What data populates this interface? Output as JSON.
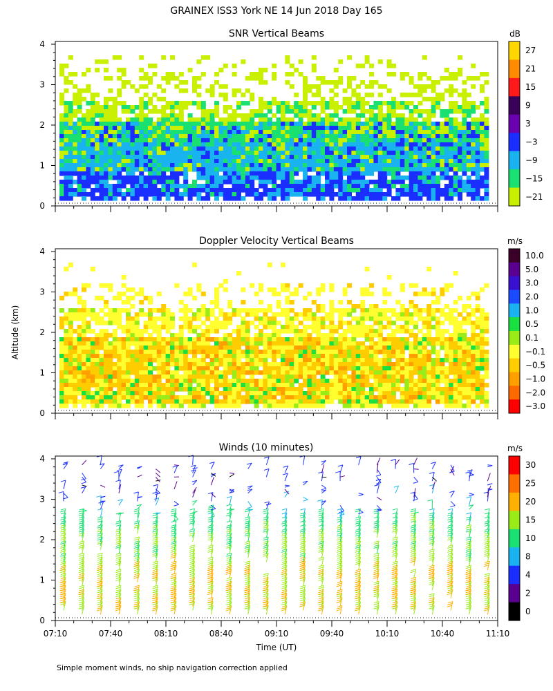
{
  "figure": {
    "title": "GRAINEX ISS3 York NE  14 Jun 2018 Day 165",
    "ylabel": "Altitude (km)",
    "xlabel": "Time (UT)",
    "footnote": "Simple moment winds, no ship navigation correction applied"
  },
  "chart_data": [
    {
      "type": "heatmap",
      "title": "SNR Vertical Beams",
      "colorbar_unit": "dB",
      "ylim": [
        0,
        4
      ],
      "yticks": [
        0,
        1,
        2,
        3,
        4
      ],
      "x_range": [
        "07:10",
        "11:10"
      ],
      "colorbar_levels": [
        "27",
        "21",
        "15",
        "9",
        "3",
        "−3",
        "−9",
        "−15",
        "−21"
      ],
      "colors": [
        "#ffd700",
        "#ff8c00",
        "#ff1a1a",
        "#3a005a",
        "#6a00b0",
        "#1a2fff",
        "#19b4f0",
        "#19e070",
        "#c8f000"
      ],
      "description_layers": [
        {
          "alt_range": [
            0.1,
            0.9
          ],
          "dominant": "-3 to 3 dB"
        },
        {
          "alt_range": [
            0.9,
            1.6
          ],
          "dominant": "-9 dB"
        },
        {
          "alt_range": [
            1.6,
            2.6
          ],
          "dominant": "-15 dB"
        },
        {
          "alt_range": [
            2.6,
            3.8
          ],
          "dominant": "-21 dB (sparse)"
        }
      ]
    },
    {
      "type": "heatmap",
      "title": "Doppler Velocity Vertical Beams",
      "colorbar_unit": "m/s",
      "ylim": [
        0,
        4
      ],
      "yticks": [
        0,
        1,
        2,
        3,
        4
      ],
      "x_range": [
        "07:10",
        "11:10"
      ],
      "colorbar_levels": [
        "10.0",
        "5.0",
        "3.0",
        "2.0",
        "1.0",
        "0.5",
        "0.1",
        "−0.1",
        "−0.5",
        "−1.0",
        "−2.0",
        "−3.0"
      ],
      "colors": [
        "#3a0028",
        "#5a0090",
        "#3a10d0",
        "#1a4cff",
        "#19b4f0",
        "#19e040",
        "#9aec18",
        "#ffff30",
        "#ffcc00",
        "#ffa000",
        "#ff6a00",
        "#ff0000"
      ],
      "description_layers": [
        {
          "alt_range": [
            0.2,
            2.5
          ],
          "dominant": "-0.5 to 0.1 m/s"
        },
        {
          "alt_range": [
            2.8,
            3.3
          ],
          "dominant": "-0.1 m/s (sparse)"
        }
      ]
    },
    {
      "type": "scatter",
      "title": "Winds (10 minutes)",
      "colorbar_unit": "m/s",
      "ylim": [
        0,
        4
      ],
      "yticks": [
        0,
        1,
        2,
        3,
        4
      ],
      "x": [
        "07:10",
        "07:40",
        "08:10",
        "08:40",
        "09:10",
        "09:40",
        "10:10",
        "10:40",
        "11:10"
      ],
      "xticks": [
        "07:10",
        "07:40",
        "08:10",
        "08:40",
        "09:10",
        "09:40",
        "10:10",
        "10:40",
        "11:10"
      ],
      "colorbar_levels": [
        "30",
        "25",
        "20",
        "15",
        "10",
        "8",
        "4",
        "2",
        "0"
      ],
      "colors": [
        "#ff0000",
        "#ff7000",
        "#ffb000",
        "#9aec18",
        "#19e070",
        "#19b4f0",
        "#1a2fff",
        "#5a0090",
        "#000000"
      ],
      "profile_times": [
        "07:10",
        "07:20",
        "07:30",
        "07:40",
        "07:50",
        "08:00",
        "08:10",
        "08:20",
        "08:30",
        "08:40",
        "08:50",
        "09:00",
        "09:10",
        "09:20",
        "09:30",
        "09:40",
        "09:50",
        "10:00",
        "10:10",
        "10:20",
        "10:30",
        "10:40",
        "10:50",
        "11:00"
      ],
      "wind_speed_profile_ms": [
        {
          "alt_km": 0.5,
          "speed": 20
        },
        {
          "alt_km": 1.0,
          "speed": 20
        },
        {
          "alt_km": 1.5,
          "speed": 17
        },
        {
          "alt_km": 2.0,
          "speed": 15
        },
        {
          "alt_km": 2.5,
          "speed": 12
        },
        {
          "alt_km": 3.0,
          "speed": 6
        },
        {
          "alt_km": 3.5,
          "speed": 4
        }
      ]
    }
  ]
}
